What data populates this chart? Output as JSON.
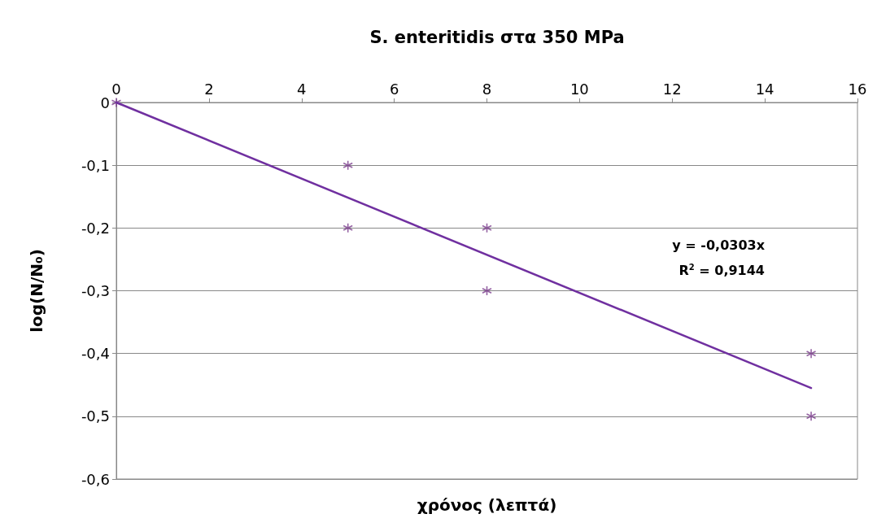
{
  "chart_data": {
    "type": "scatter",
    "title": "S. enteritidis στα 350 MPa",
    "xlabel": "χρόνος (λεπτά)",
    "ylabel": "log(N/N₀)",
    "series": [
      {
        "color": "#7a3c8c",
        "x": [
          0,
          5,
          5,
          8,
          8,
          15,
          15
        ],
        "values": [
          0,
          -0.1,
          -0.2,
          -0.2,
          -0.3,
          -0.4,
          -0.5
        ],
        "marker": "cross"
      },
      {
        "type": "line",
        "color": "#7030a0",
        "x": [
          0,
          15
        ],
        "values": [
          0,
          -0.455
        ],
        "marker": "none",
        "line_style": "solid"
      }
    ],
    "xlim": [
      0,
      16
    ],
    "xticks": [
      0,
      2,
      4,
      6,
      8,
      10,
      12,
      14,
      16
    ],
    "ylim": [
      -0.6,
      0
    ],
    "yticks": [
      {
        "value": -0.6,
        "label": "-0,6"
      },
      {
        "value": -0.5,
        "label": "-0,5"
      },
      {
        "value": -0.4,
        "label": "-0,4"
      },
      {
        "value": -0.3,
        "label": "-0,3"
      },
      {
        "value": -0.2,
        "label": "-0,2"
      },
      {
        "value": -0.1,
        "label": "-0,1"
      },
      0
    ],
    "grid": "y",
    "annotations": [
      "y = -0,0303x",
      "R$^{2}$ = 0,9144"
    ]
  }
}
